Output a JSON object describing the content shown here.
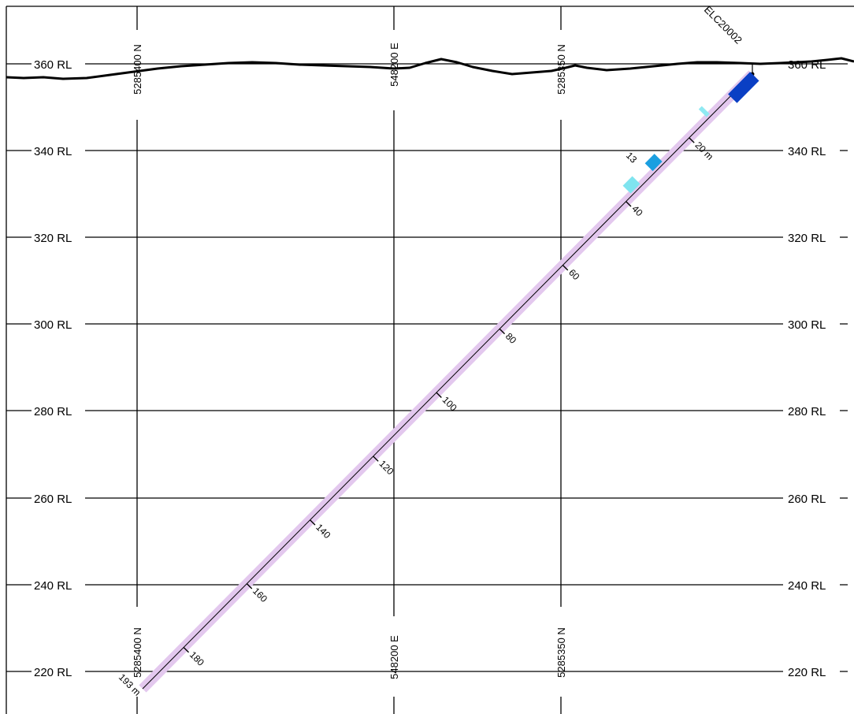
{
  "rl_levels": [
    {
      "value": 360,
      "left_label": "360 RL",
      "right_label": "360 RL"
    },
    {
      "value": 340,
      "left_label": "340 RL",
      "right_label": "340 RL"
    },
    {
      "value": 320,
      "left_label": "320 RL",
      "right_label": "320 RL"
    },
    {
      "value": 300,
      "left_label": "300 RL",
      "right_label": "300 RL"
    },
    {
      "value": 280,
      "left_label": "280 RL",
      "right_label": "280 RL"
    },
    {
      "value": 260,
      "left_label": "260 RL",
      "right_label": "260 RL"
    },
    {
      "value": 240,
      "left_label": "240 RL",
      "right_label": "240 RL"
    },
    {
      "value": 220,
      "left_label": "220 RL",
      "right_label": "220 RL"
    }
  ],
  "coordinate_lines": [
    {
      "top_label": "5285400 N",
      "bottom_label": "5285400 N"
    },
    {
      "top_label": "548200 E",
      "bottom_label": "548200 E"
    },
    {
      "top_label": "5285350 N",
      "bottom_label": "5285350 N"
    }
  ],
  "drillhole": {
    "name": "ELC20002",
    "trace_color": "#e3c8ee",
    "depth_ticks": [
      {
        "depth": 20,
        "label": "20 m"
      },
      {
        "depth": 40,
        "label": "40"
      },
      {
        "depth": 60,
        "label": "60"
      },
      {
        "depth": 80,
        "label": "80"
      },
      {
        "depth": 100,
        "label": "100"
      },
      {
        "depth": 120,
        "label": "120"
      },
      {
        "depth": 140,
        "label": "140"
      },
      {
        "depth": 160,
        "label": "160"
      },
      {
        "depth": 180,
        "label": "180"
      }
    ],
    "end_label": "193 m",
    "intervals": [
      {
        "from": 0,
        "to": 7,
        "color": "#0a3fc4",
        "side": "right"
      },
      {
        "from": 13,
        "to": 14,
        "color": "#8fe9f2",
        "side": "left"
      },
      {
        "from": 28,
        "to": 31,
        "color": "#1b9fe0",
        "side": "left"
      },
      {
        "from": 35,
        "to": 38,
        "color": "#7fe4ef",
        "side": "left"
      }
    ],
    "annotation": {
      "label": "13",
      "color": "#1a2fd0"
    }
  }
}
